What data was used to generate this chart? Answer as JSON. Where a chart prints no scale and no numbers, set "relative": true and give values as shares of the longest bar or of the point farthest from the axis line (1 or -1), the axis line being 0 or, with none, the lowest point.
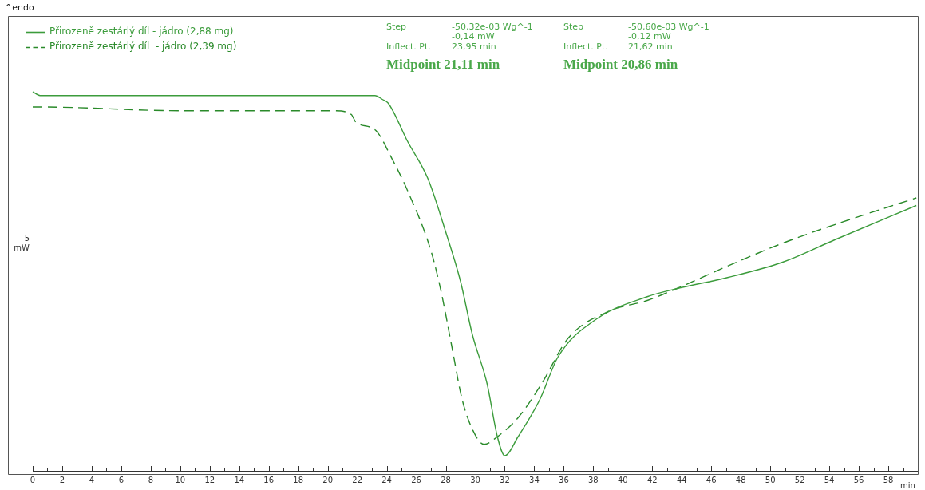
{
  "chart_data": {
    "type": "line",
    "relative": true,
    "ylabel": "5 mW",
    "xlabel": "min",
    "legend": "top left",
    "grid": false,
    "marker": "none",
    "xlim": [
      0,
      60
    ],
    "xticks": [
      0,
      {
        "value": 1,
        "label": null
      },
      2,
      {
        "value": 3,
        "label": null
      },
      4,
      {
        "value": 5,
        "label": null
      },
      6,
      {
        "value": 7,
        "label": null
      },
      8,
      {
        "value": 9,
        "label": null
      },
      10,
      {
        "value": 11,
        "label": null
      },
      12,
      {
        "value": 13,
        "label": null
      },
      14,
      {
        "value": 15,
        "label": null
      },
      16,
      {
        "value": 17,
        "label": null
      },
      18,
      {
        "value": 19,
        "label": null
      },
      20,
      {
        "value": 21,
        "label": null
      },
      22,
      {
        "value": 23,
        "label": null
      },
      24,
      {
        "value": 25,
        "label": null
      },
      26,
      {
        "value": 27,
        "label": null
      },
      28,
      {
        "value": 29,
        "label": null
      },
      30,
      {
        "value": 31,
        "label": null
      },
      32,
      {
        "value": 33,
        "label": null
      },
      34,
      {
        "value": 35,
        "label": null
      },
      36,
      {
        "value": 37,
        "label": null
      },
      38,
      {
        "value": 39,
        "label": null
      },
      40,
      {
        "value": 41,
        "label": null
      },
      42,
      {
        "value": 43,
        "label": null
      },
      44,
      {
        "value": 45,
        "label": null
      },
      46,
      {
        "value": 47,
        "label": null
      },
      48,
      {
        "value": 49,
        "label": null
      },
      50,
      {
        "value": 51,
        "label": null
      },
      52,
      {
        "value": 53,
        "label": null
      },
      54,
      {
        "value": 55,
        "label": null
      },
      56,
      {
        "value": 57,
        "label": null
      },
      58,
      {
        "value": 59,
        "label": null
      }
    ],
    "annotations": [
      "^endo",
      "Step",
      "-50,32e-03 Wg^-1",
      "-0,14 mW",
      "Inflect. Pt.",
      "23,95 min",
      "Midpoint 21,11 min",
      "Step",
      "-50,60e-03 Wg^-1",
      "-0,12 mW",
      "Inflect. Pt.",
      "21,62 min",
      "Midpoint 20,86 min"
    ],
    "series": [
      {
        "name": "Přirozeně zestárlý díl - jádro (2,88 mg)",
        "color": "#3c9c3c",
        "line_style": "solid",
        "x": [
          0,
          0.5,
          10,
          20,
          23.2,
          23.7,
          24.1,
          25.4,
          26.8,
          28.0,
          29.0,
          29.8,
          30.8,
          31.5,
          32.0,
          32.9,
          34.4,
          35.6,
          38.2,
          41.7,
          43.6,
          47.1,
          50.8,
          54.4,
          59.9
        ],
        "values": [
          1.0,
          0.99,
          0.99,
          0.99,
          0.99,
          0.98,
          0.97,
          0.87,
          0.77,
          0.63,
          0.5,
          0.36,
          0.23,
          0.09,
          0.04,
          0.09,
          0.19,
          0.3,
          0.4,
          0.46,
          0.48,
          0.51,
          0.55,
          0.61,
          0.7
        ]
      },
      {
        "name": "Přirozeně zestárlý díl  - jádro (2,39 mg)",
        "color": "#2a8a2a",
        "line_style": "dashed",
        "x": [
          0,
          0.5,
          10,
          20.5,
          21.6,
          21.9,
          23.2,
          24.4,
          25.4,
          27.0,
          27.7,
          28.4,
          29.1,
          29.8,
          30.6,
          31.5,
          32.9,
          34.5,
          36.3,
          39.0,
          41.7,
          43.6,
          47.1,
          50.8,
          54.4,
          59.9
        ],
        "values": [
          0.96,
          0.96,
          0.95,
          0.95,
          0.94,
          0.92,
          0.9,
          0.82,
          0.74,
          0.58,
          0.47,
          0.33,
          0.19,
          0.11,
          0.07,
          0.09,
          0.14,
          0.23,
          0.35,
          0.42,
          0.45,
          0.48,
          0.54,
          0.6,
          0.65,
          0.72
        ]
      }
    ]
  }
}
